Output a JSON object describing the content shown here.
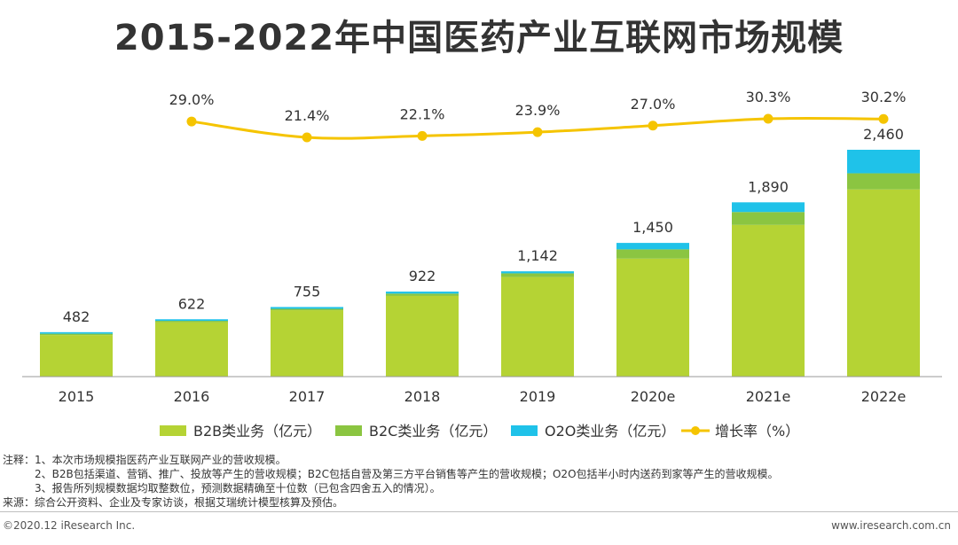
{
  "title": "2015-2022年中国医药产业互联网市场规模",
  "chart_data": {
    "type": "bar",
    "stacked": true,
    "categories": [
      "2015",
      "2016",
      "2017",
      "2018",
      "2019",
      "2020e",
      "2021e",
      "2022e"
    ],
    "totals": [
      482,
      622,
      755,
      922,
      1142,
      1450,
      1890,
      2460
    ],
    "total_labels": [
      "482",
      "622",
      "755",
      "922",
      "1,142",
      "1,450",
      "1,890",
      "2,460"
    ],
    "series": [
      {
        "name": "B2B类业务（亿元）",
        "color": "#b5d334",
        "values": [
          450,
          590,
          720,
          875,
          1080,
          1280,
          1645,
          2030
        ]
      },
      {
        "name": "B2C类业务（亿元）",
        "color": "#8bc541",
        "values": [
          15,
          15,
          15,
          25,
          40,
          100,
          140,
          175
        ]
      },
      {
        "name": "O2O类业务（亿元）",
        "color": "#1fc2e9",
        "values": [
          17,
          17,
          20,
          22,
          22,
          70,
          105,
          255
        ]
      }
    ],
    "line_series": {
      "name": "增长率（%）",
      "color": "#f5c400",
      "values": [
        29.0,
        21.4,
        22.1,
        23.9,
        27.0,
        30.3,
        30.2
      ],
      "labels": [
        "29.0%",
        "21.4%",
        "22.1%",
        "23.9%",
        "27.0%",
        "30.3%",
        "30.2%"
      ],
      "start_index": 1
    },
    "grid": false,
    "legend_position": "bottom"
  },
  "notes": [
    "注释：1、本次市场规模指医药产业互联网产业的营收规模。",
    "　　　2、B2B包括渠道、营销、推广、投放等产生的营收规模；B2C包括自营及第三方平台销售等产生的营收规模；O2O包括半小时内送药到家等产生的营收规模。",
    "　　　3、报告所列规模数据均取整数位，预测数据精确至十位数（已包含四舍五入的情况）。",
    "来源：综合公开资料、企业及专家访谈，根据艾瑞统计模型核算及预估。"
  ],
  "footer": {
    "left": "©2020.12 iResearch Inc.",
    "right": "www.iresearch.com.cn"
  }
}
